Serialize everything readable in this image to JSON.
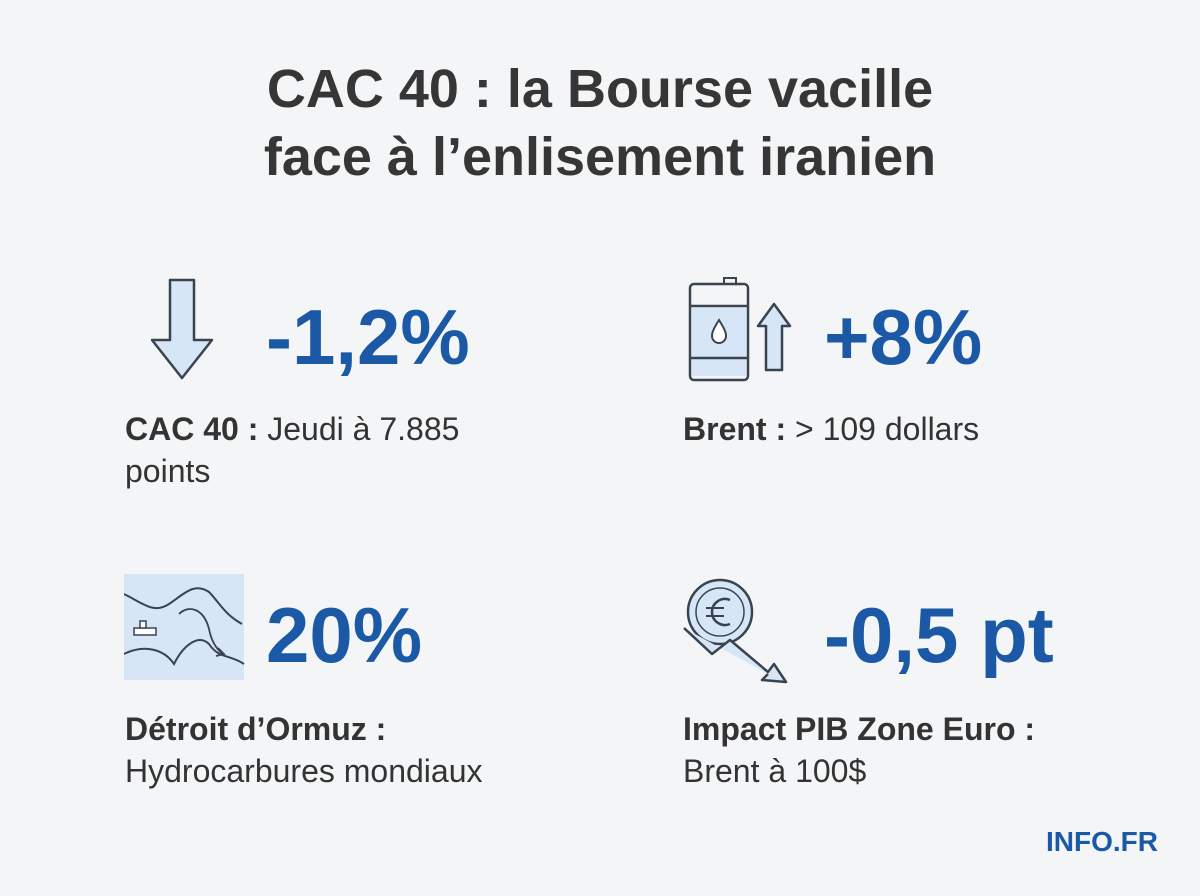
{
  "header": {
    "title_lines": [
      "CAC 40 : la Bourse vacille",
      "face à l’enlisement iranien"
    ]
  },
  "stats": [
    {
      "value": "-1,2%",
      "label_bold": "CAC 40 :",
      "label_text": "Jeudi à 7.885 points"
    },
    {
      "value": "+8%",
      "label_bold": "Brent :",
      "label_text": "> 109 dollars"
    },
    {
      "value": "20%",
      "label_bold": "Détroit d’Ormuz :",
      "label_text": "Hydrocarbures mondiaux"
    },
    {
      "value": "-0,5 pt",
      "label_bold": "Impact PIB Zone Euro :",
      "label_text": "Brent à 100$"
    }
  ],
  "footer": {
    "brand": "INFO.FR"
  }
}
